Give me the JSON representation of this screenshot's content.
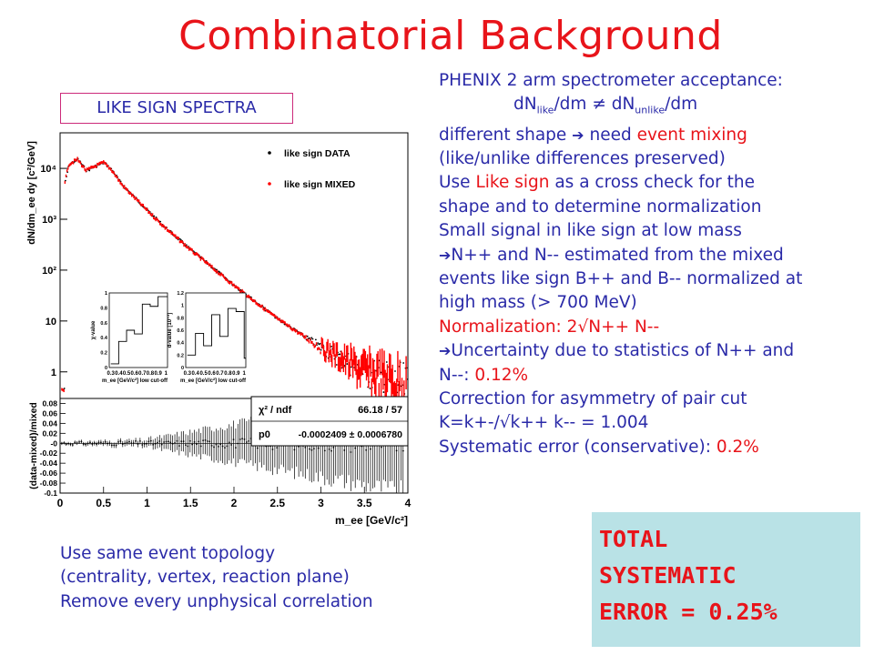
{
  "slide": {
    "title": "Combinatorial Background",
    "plot_label": "LIKE SIGN SPECTRA",
    "notes": {
      "l1": "PHENIX 2 arm spectrometer acceptance:",
      "l2a": "dN",
      "l2b": "like",
      "l2c": "/dm ≠ dN",
      "l2d": "unlike",
      "l2e": "/dm",
      "l3a": "different shape ",
      "l3b": "need ",
      "l3c": "event mixing",
      "l4": "(like/unlike differences preserved)",
      "l5a": "Use ",
      "l5b": "Like sign",
      "l5c": " as a cross check for the",
      "l6": "shape and to determine normalization",
      "l7": "Small signal in like sign at low mass",
      "l8": "N++ and N-- estimated from the mixed",
      "l9": "events like sign B++ and B-- normalized at",
      "l10": "high mass (> 700 MeV)",
      "l11": "Normalization: 2√N++ N--",
      "l12": "Uncertainty due to statistics of N++ and",
      "l13a": "N--: ",
      "l13b": "0.12%",
      "l14": "Correction for asymmetry of pair cut",
      "l15": "K=k+-/√k++ k-- = 1.004",
      "l16a": "Systematic error (conservative): ",
      "l16b": "0.2%",
      "arrow_glyph": "➔"
    },
    "bottom": {
      "l1": "Use same event topology",
      "l2": "(centrality, vertex, reaction plane)",
      "l3": "Remove every unphysical correlation"
    },
    "total": {
      "l1": "TOTAL",
      "l2": "SYSTEMATIC",
      "l3": "ERROR = 0.25%"
    }
  },
  "chart_data": [
    {
      "type": "scatter",
      "panel": "top",
      "ylabel": "dN/dm_ee dy [c²/GeV]",
      "yscale": "log",
      "xlim": [
        0,
        4
      ],
      "ylim": [
        0.3,
        50000
      ],
      "yticks": [
        "1",
        "10",
        "10²",
        "10³",
        "10⁴"
      ],
      "ytick_values": [
        1,
        10,
        100,
        1000,
        10000
      ],
      "legend_position": "top-right",
      "series": [
        {
          "name": "like sign DATA",
          "color": "#000000",
          "x": [
            0.05,
            0.1,
            0.2,
            0.3,
            0.4,
            0.5,
            0.6,
            0.7,
            0.8,
            1.0,
            1.2,
            1.5,
            2.0,
            2.5,
            3.0,
            3.5,
            4.0
          ],
          "y": [
            5000,
            12000,
            15000,
            9000,
            11000,
            13000,
            9000,
            5000,
            3300,
            1500,
            700,
            250,
            50,
            11,
            3,
            1,
            0.45
          ]
        },
        {
          "name": "like sign MIXED",
          "color": "#ff0000",
          "x": [
            0.05,
            0.1,
            0.2,
            0.3,
            0.4,
            0.5,
            0.6,
            0.7,
            0.8,
            1.0,
            1.2,
            1.5,
            2.0,
            2.5,
            3.0,
            3.5,
            4.0
          ],
          "y": [
            5000,
            12000,
            15000,
            9000,
            11000,
            13000,
            9000,
            5000,
            3300,
            1500,
            700,
            250,
            50,
            11,
            3,
            1,
            0.45
          ]
        }
      ],
      "legend": {
        "data_label": "like sign DATA",
        "mixed_label": "like sign MIXED"
      }
    },
    {
      "type": "line",
      "panel": "inset-left",
      "xlabel": "m_ee [GeV/c²] low cut-off",
      "ylabel": "χ-value",
      "x_ticks": [
        "0.3",
        "0.4",
        "0.5",
        "0.6",
        "0.7",
        "0.8",
        "0.9",
        "1"
      ],
      "y_ticks": [
        "0",
        "0.2",
        "0.4",
        "0.6",
        "0.8",
        "1"
      ],
      "x": [
        0.3,
        0.4,
        0.5,
        0.6,
        0.7,
        0.8,
        0.9,
        1.0
      ],
      "y": [
        0.05,
        0.35,
        0.5,
        0.45,
        0.85,
        0.82,
        0.95,
        0.95
      ]
    },
    {
      "type": "line",
      "panel": "inset-right",
      "xlabel": "m_ee [GeV/c²] low cut-off",
      "ylabel": "d-value [10⁻³]",
      "y_ticks": [
        "0",
        "0.2",
        "0.4",
        "0.6",
        "0.8",
        "1",
        "1.2"
      ],
      "x_ticks": [
        "0.3",
        "0.4",
        "0.5",
        "0.6",
        "0.7",
        "0.8",
        "0.9",
        "1"
      ],
      "x": [
        0.3,
        0.4,
        0.5,
        0.6,
        0.7,
        0.8,
        0.9,
        1.0
      ],
      "y": [
        0.2,
        0.55,
        0.35,
        0.85,
        0.5,
        0.95,
        0.9,
        0.15
      ]
    },
    {
      "type": "scatter",
      "panel": "bottom",
      "xlabel": "m_ee [GeV/c²]",
      "ylabel": "(data-mixed)/mixed",
      "xlim": [
        0,
        4
      ],
      "ylim": [
        -0.1,
        0.09
      ],
      "x_ticks": [
        "0",
        "0.5",
        "1",
        "1.5",
        "2",
        "2.5",
        "3",
        "3.5",
        "4"
      ],
      "y_ticks": [
        "-0.1",
        "-0.08",
        "-0.06",
        "-0.04",
        "-0.02",
        "-0",
        "0.02",
        "0.04",
        "0.06",
        "0.08"
      ],
      "fit": {
        "chi2_label": "χ² / ndf",
        "chi2_value": "66.18 / 57",
        "p0_label": "p0",
        "p0_value": "-0.0002409 ± 0.0006780"
      }
    }
  ]
}
